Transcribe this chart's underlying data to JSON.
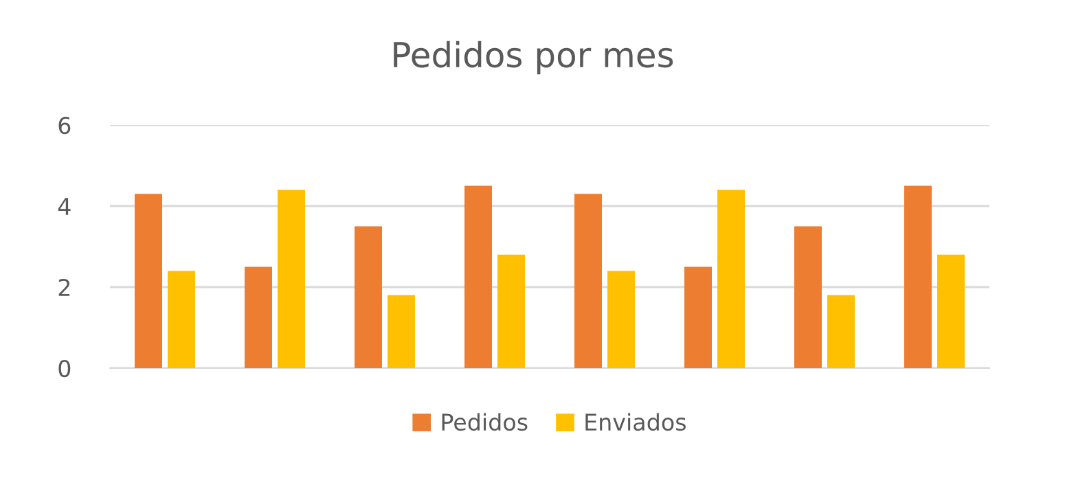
{
  "chart_data": {
    "type": "bar",
    "title": "Pedidos por mes",
    "categories": [
      null,
      null,
      null,
      null,
      null,
      null,
      null,
      null
    ],
    "series": [
      {
        "name": "Pedidos",
        "color": "#ed7d31",
        "values": [
          4.3,
          2.5,
          3.5,
          4.5,
          4.3,
          2.5,
          3.5,
          4.5
        ]
      },
      {
        "name": "Enviados",
        "color": "#ffc000",
        "values": [
          2.4,
          4.4,
          1.8,
          2.8,
          2.4,
          4.4,
          1.8,
          2.8
        ]
      }
    ],
    "ylim": [
      0,
      6
    ],
    "yticks": [
      0,
      2,
      4,
      6
    ],
    "grid": "y",
    "legend": "bottom"
  }
}
